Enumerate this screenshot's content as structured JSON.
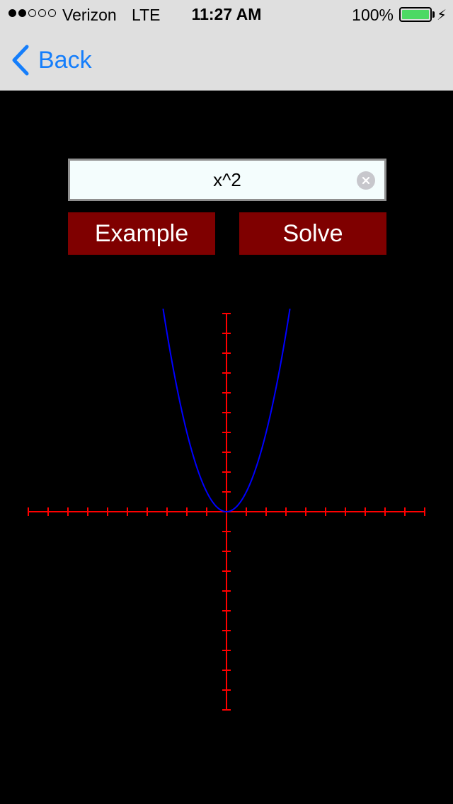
{
  "status_bar": {
    "signal_filled": 2,
    "signal_total": 5,
    "carrier": "Verizon",
    "network": "LTE",
    "time": "11:27 AM",
    "battery_percent": "100%",
    "battery_level": 1.0,
    "battery_color": "#4cd964"
  },
  "nav": {
    "back_label": "Back",
    "back_icon": "chevron-left-icon",
    "accent_color": "#157efb"
  },
  "expression": {
    "value": "x^2",
    "clear_icon": "clear-circle-icon"
  },
  "buttons": {
    "example_label": "Example",
    "solve_label": "Solve",
    "color": "#7f0000"
  },
  "chart_data": {
    "type": "line",
    "function": "x^2",
    "series": [
      {
        "x": [
          -3.2,
          -3.0,
          -2.5,
          -2.0,
          -1.5,
          -1.0,
          -0.5,
          0,
          0.5,
          1.0,
          1.5,
          2.0,
          2.5,
          3.0,
          3.2
        ],
        "y": [
          10.24,
          9.0,
          6.25,
          4.0,
          2.25,
          1.0,
          0.25,
          0,
          0.25,
          1.0,
          2.25,
          4.0,
          6.25,
          9.0,
          10.24
        ]
      }
    ],
    "xlim": [
      -10,
      10
    ],
    "ylim": [
      -10,
      10
    ],
    "tick_step": 1,
    "grid": false,
    "axis_color": "#ff0000",
    "curve_color": "#0000ff"
  }
}
